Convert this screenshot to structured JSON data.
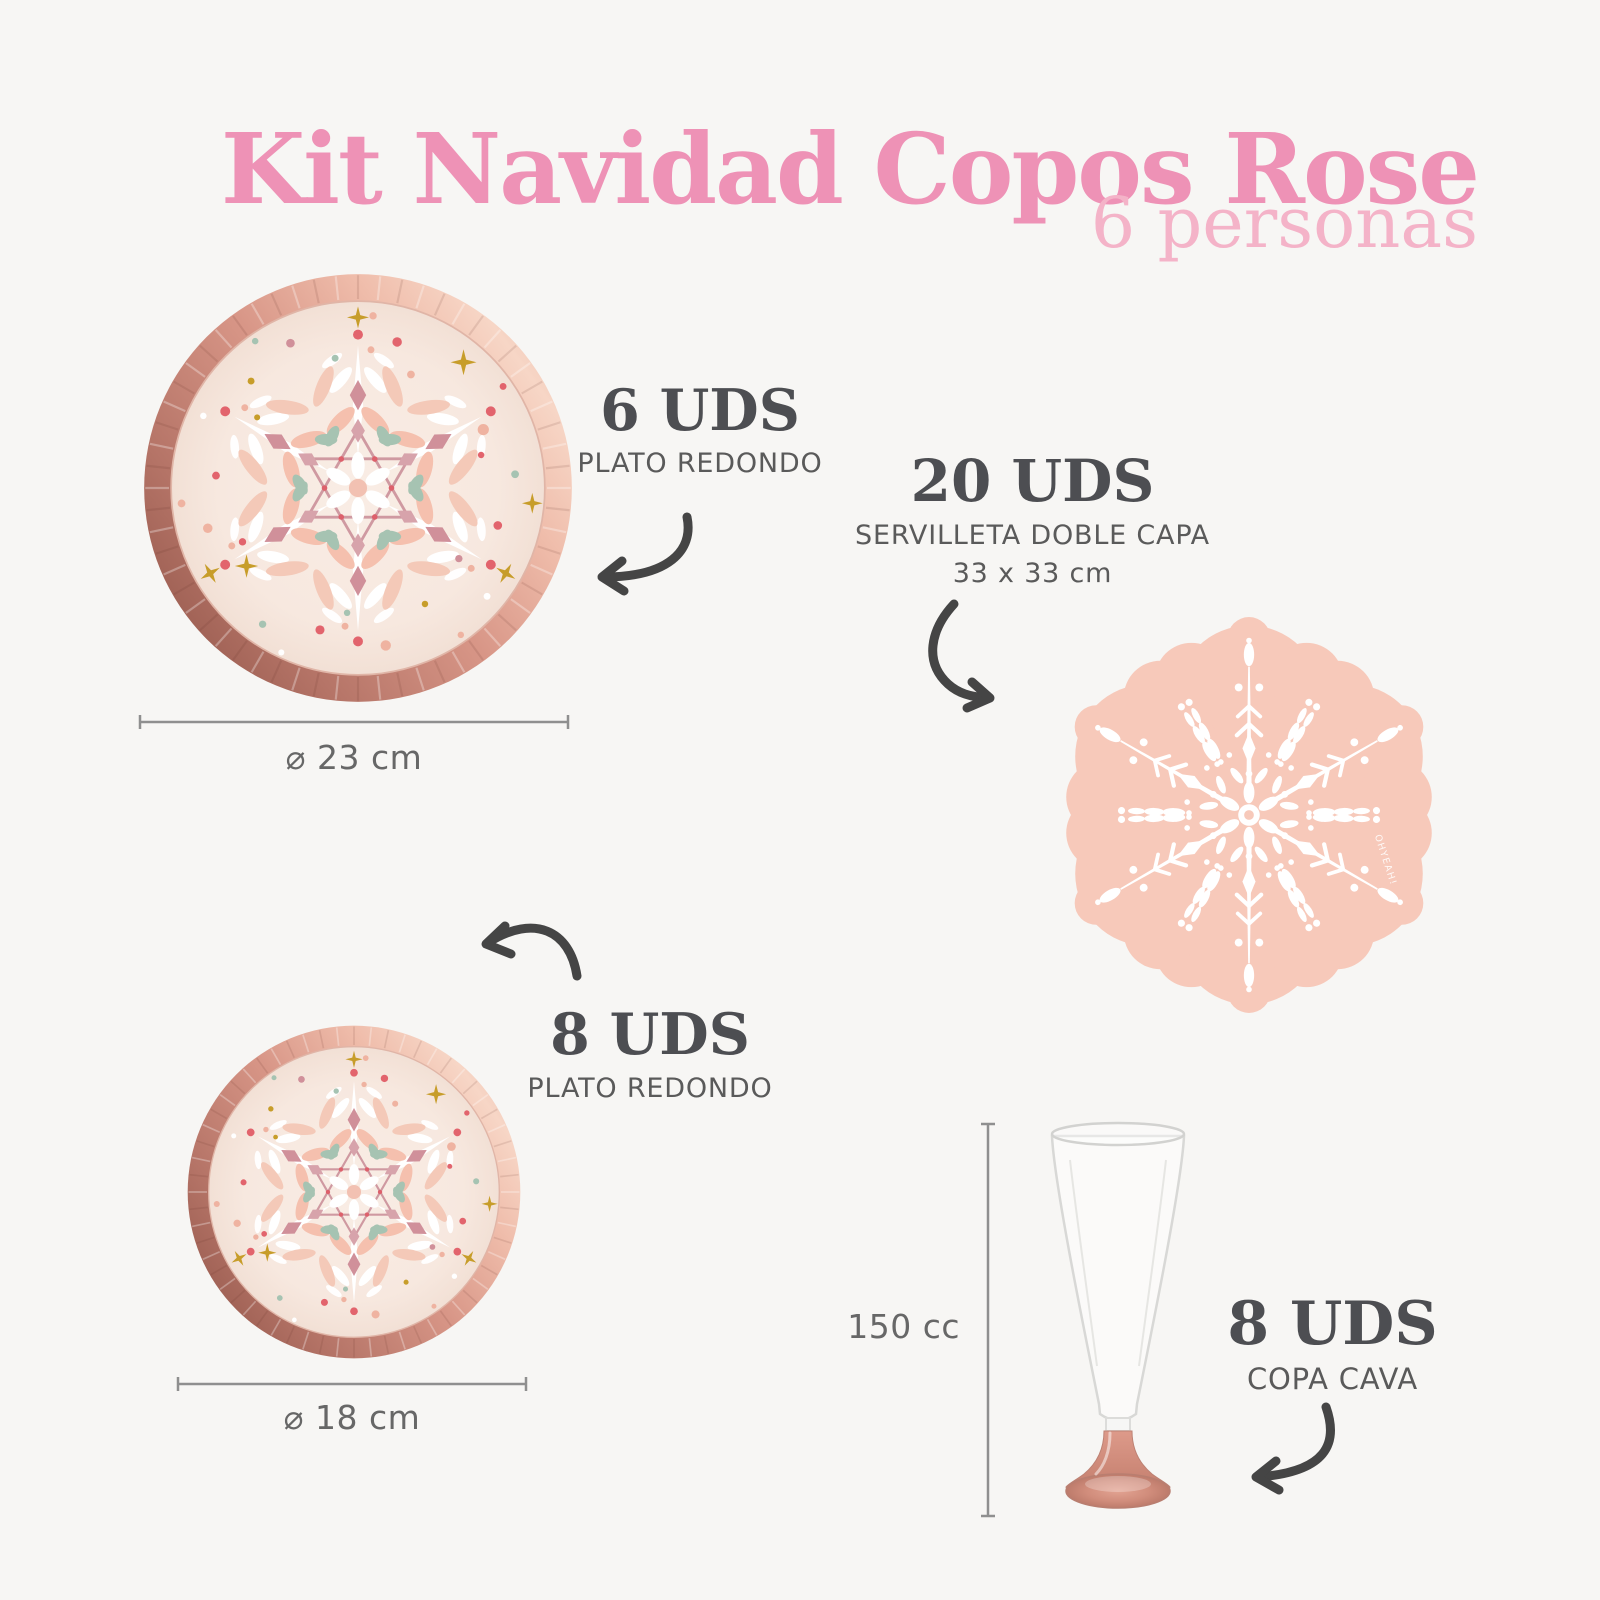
{
  "header": {
    "title": "Kit Navidad Copos Rose",
    "subtitle": "6 personas"
  },
  "items": {
    "plate_large": {
      "qty": "6 UDS",
      "label": "PLATO REDONDO",
      "dimension": "⌀  23 cm"
    },
    "napkin": {
      "qty": "20 UDS",
      "label": "SERVILLETA DOBLE CAPA",
      "dimension": "33 x 33 cm"
    },
    "plate_small": {
      "qty": "8 UDS",
      "label": "PLATO REDONDO",
      "dimension": "⌀  18 cm"
    },
    "glass": {
      "qty": "8 UDS",
      "label": "COPA CAVA",
      "capacity": "150 cc"
    }
  },
  "napkin_watermark": "OHYEAH!",
  "colors": {
    "background": "#f7f6f4",
    "title_pink": "#ee92b6",
    "subtitle_pink": "#f4b3c8",
    "text_dark": "#4d4e52",
    "napkin_pink": "#f7c9ba",
    "rim_rose_gold": "#c98875",
    "glass_base_pink": "#cd8b7b",
    "arrow_gray": "#454545"
  }
}
